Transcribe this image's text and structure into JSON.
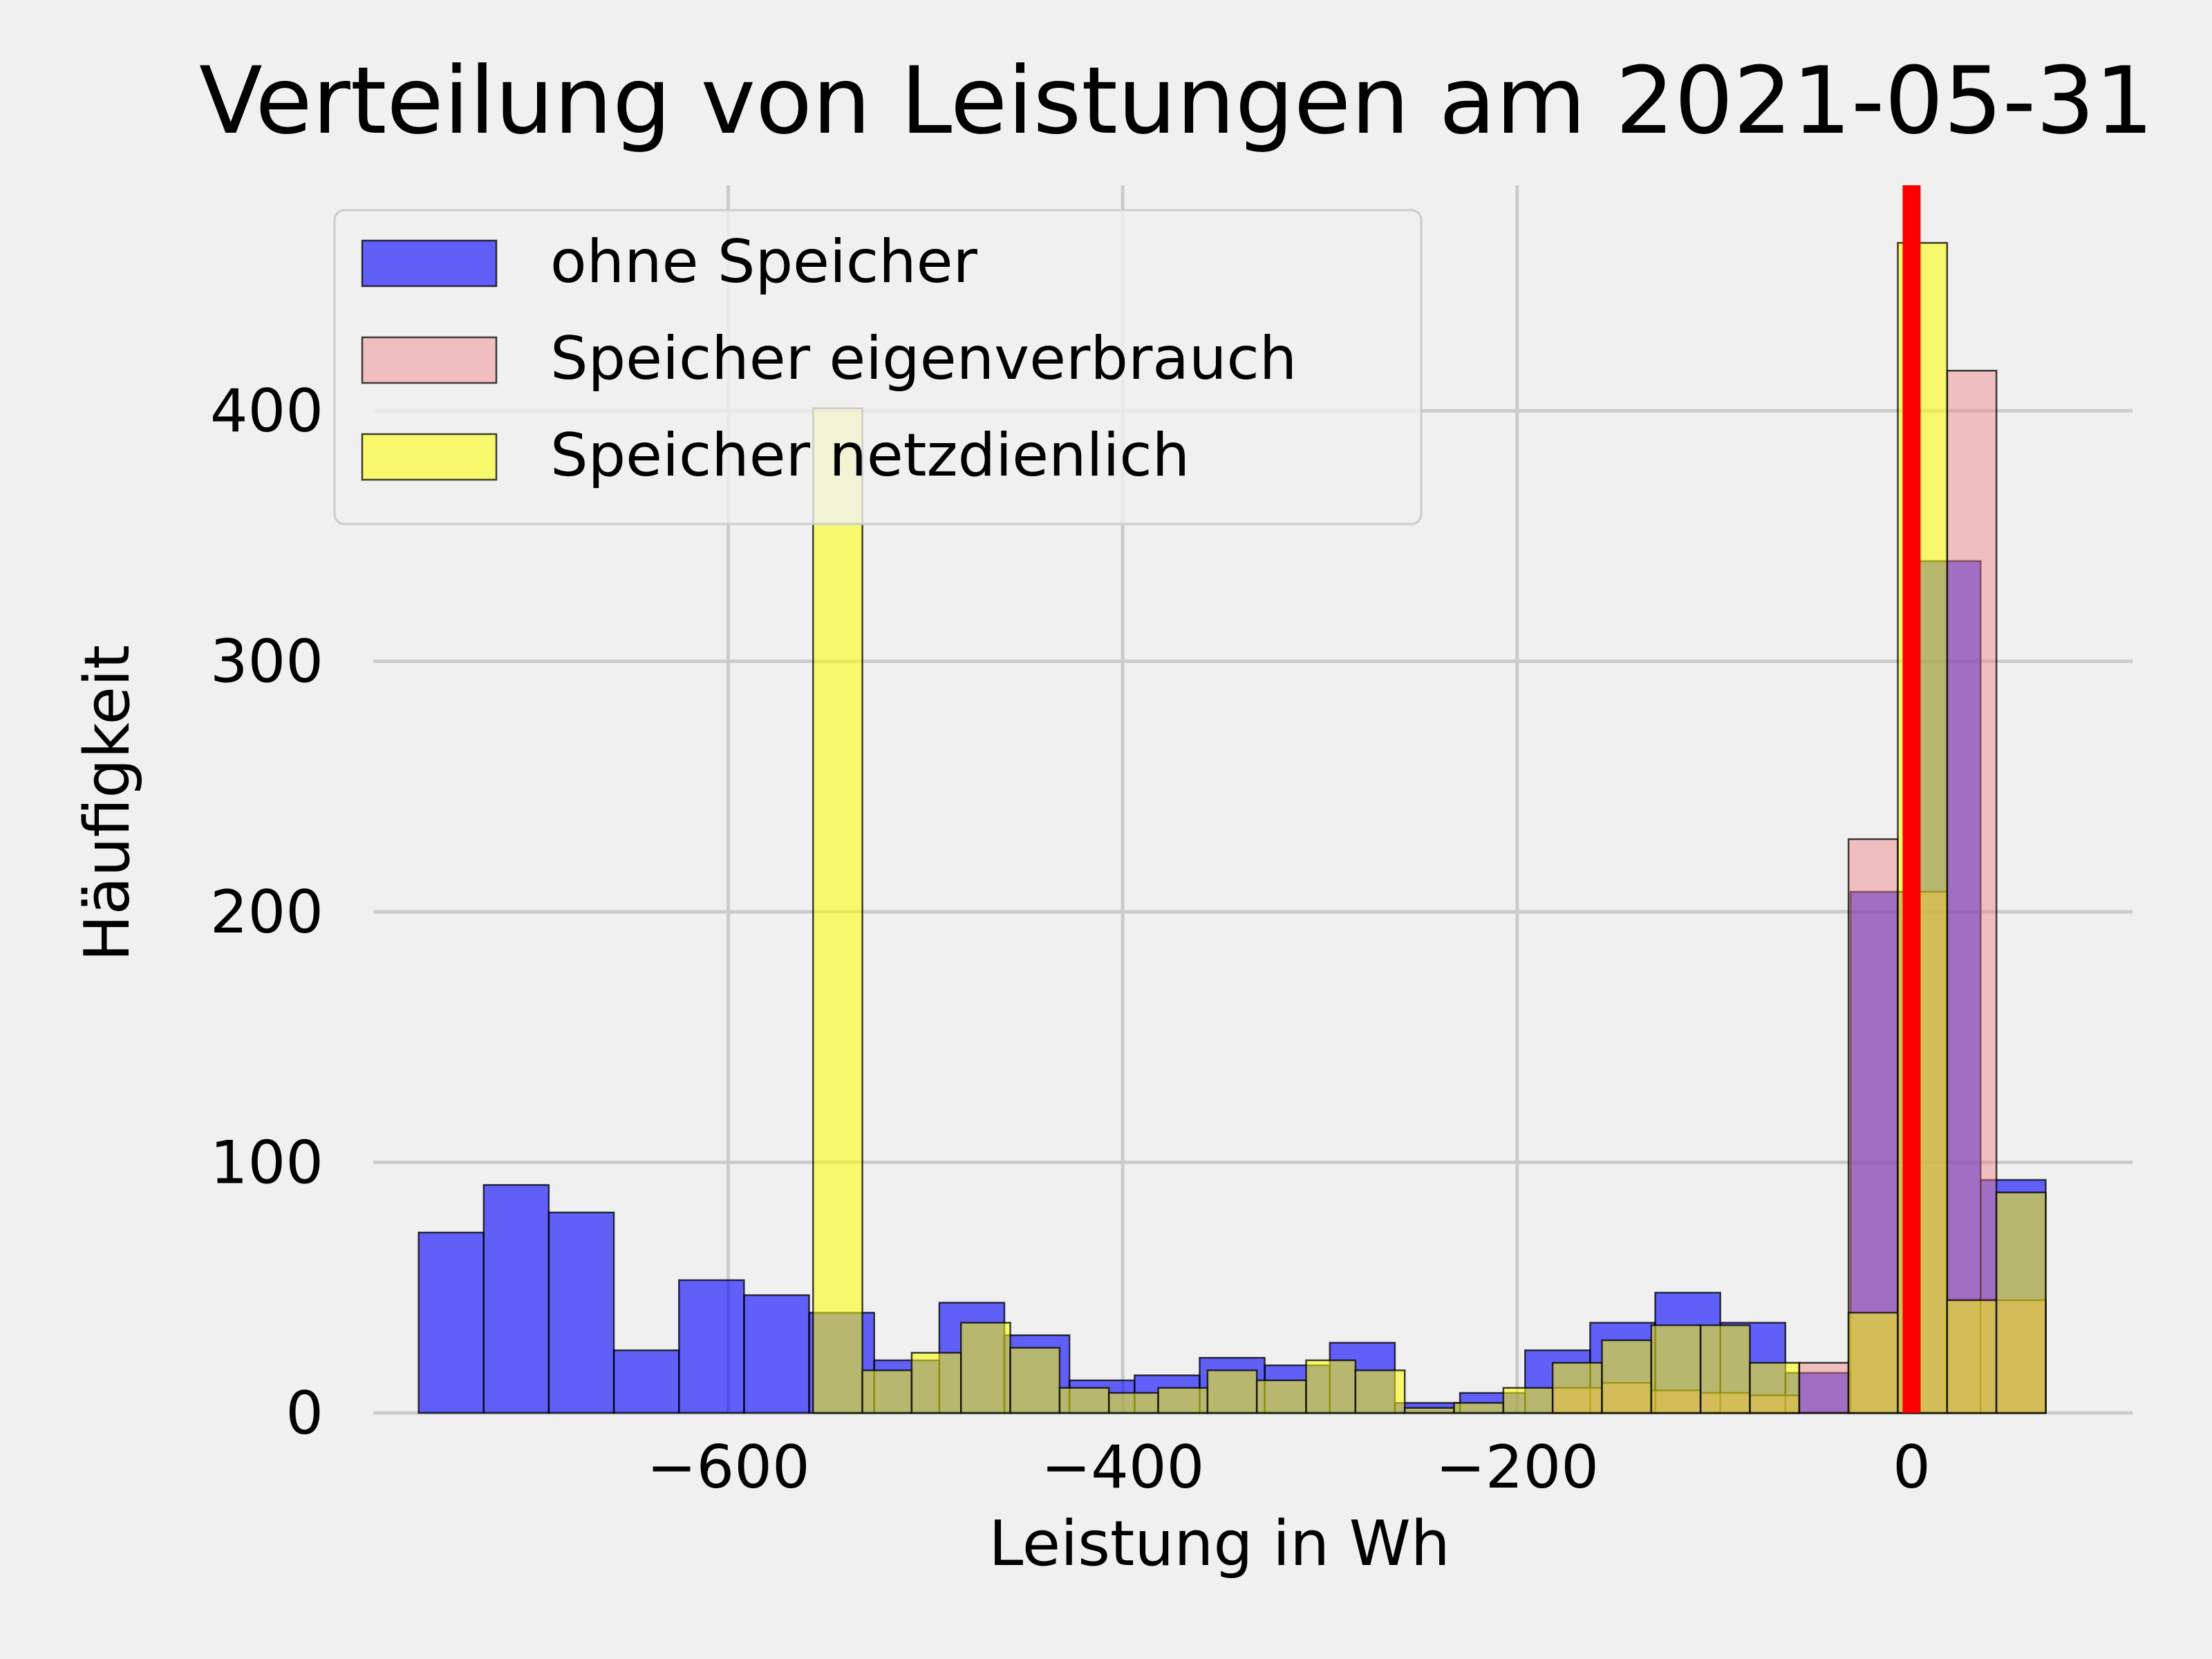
{
  "chart_data": {
    "type": "bar",
    "title": "Verteilung von Leistungen am 2021-05-31",
    "xlabel": "Leistung in Wh",
    "ylabel": "Häufigkeit",
    "xlim": [
      -780,
      112
    ],
    "ylim": [
      0,
      490
    ],
    "xticks": [
      -600,
      -400,
      -200,
      0
    ],
    "xtick_labels": [
      "−600",
      "−400",
      "−200",
      "0"
    ],
    "yticks": [
      0,
      100,
      200,
      300,
      400
    ],
    "ytick_labels": [
      "0",
      "100",
      "200",
      "300",
      "400"
    ],
    "grid": true,
    "legend_position": "top-left",
    "vline": {
      "x": 0,
      "color": "#ff0000"
    },
    "series": [
      {
        "name": "ohne Speicher",
        "color": "#0000ff",
        "opacity": 0.6,
        "bins": [
          [
            -757,
            -724,
            72
          ],
          [
            -724,
            -691,
            91
          ],
          [
            -691,
            -658,
            80
          ],
          [
            -658,
            -625,
            25
          ],
          [
            -625,
            -592,
            53
          ],
          [
            -592,
            -559,
            47
          ],
          [
            -559,
            -526,
            40
          ],
          [
            -526,
            -493,
            21
          ],
          [
            -493,
            -460,
            44
          ],
          [
            -460,
            -427,
            31
          ],
          [
            -427,
            -394,
            13
          ],
          [
            -394,
            -361,
            15
          ],
          [
            -361,
            -328,
            22
          ],
          [
            -328,
            -295,
            19
          ],
          [
            -295,
            -262,
            28
          ],
          [
            -262,
            -229,
            4
          ],
          [
            -229,
            -196,
            8
          ],
          [
            -196,
            -163,
            25
          ],
          [
            -163,
            -130,
            36
          ],
          [
            -130,
            -97,
            48
          ],
          [
            -97,
            -64,
            36
          ],
          [
            -64,
            -31,
            16
          ],
          [
            -31,
            2,
            208
          ],
          [
            2,
            35,
            340
          ],
          [
            35,
            68,
            93
          ]
        ]
      },
      {
        "name": "Speicher eigenverbrauch",
        "color": "#f08080",
        "opacity": 0.45,
        "bins": [
          [
            -557,
            -532,
            0
          ],
          [
            -532,
            -507,
            0
          ],
          [
            -507,
            -482,
            0
          ],
          [
            -482,
            -457,
            0
          ],
          [
            -457,
            -432,
            0
          ],
          [
            -432,
            -407,
            0
          ],
          [
            -407,
            -382,
            0
          ],
          [
            -382,
            -357,
            0
          ],
          [
            -357,
            -332,
            0
          ],
          [
            -332,
            -307,
            0
          ],
          [
            -307,
            -282,
            0
          ],
          [
            -282,
            -257,
            0
          ],
          [
            -257,
            -232,
            0
          ],
          [
            -232,
            -207,
            0
          ],
          [
            -207,
            -182,
            0
          ],
          [
            -182,
            -157,
            10
          ],
          [
            -157,
            -132,
            12
          ],
          [
            -132,
            -107,
            9
          ],
          [
            -107,
            -82,
            8
          ],
          [
            -82,
            -57,
            7
          ],
          [
            -57,
            -32,
            20
          ],
          [
            -32,
            -7,
            229
          ],
          [
            -7,
            18,
            208
          ],
          [
            18,
            43,
            416
          ],
          [
            43,
            68,
            45
          ]
        ]
      },
      {
        "name": "Speicher netzdienlich",
        "color": "#ffff00",
        "opacity": 0.55,
        "bins": [
          [
            -557,
            -532,
            401
          ],
          [
            -532,
            -507,
            17
          ],
          [
            -507,
            -482,
            24
          ],
          [
            -482,
            -457,
            36
          ],
          [
            -457,
            -432,
            26
          ],
          [
            -432,
            -407,
            10
          ],
          [
            -407,
            -382,
            8
          ],
          [
            -382,
            -357,
            10
          ],
          [
            -357,
            -332,
            17
          ],
          [
            -332,
            -307,
            13
          ],
          [
            -307,
            -282,
            21
          ],
          [
            -282,
            -257,
            17
          ],
          [
            -257,
            -232,
            2
          ],
          [
            -232,
            -207,
            4
          ],
          [
            -207,
            -182,
            10
          ],
          [
            -182,
            -157,
            20
          ],
          [
            -157,
            -132,
            29
          ],
          [
            -132,
            -107,
            35
          ],
          [
            -107,
            -82,
            35
          ],
          [
            -82,
            -57,
            20
          ],
          [
            -57,
            -32,
            0
          ],
          [
            -32,
            -7,
            40
          ],
          [
            -7,
            18,
            467
          ],
          [
            18,
            43,
            45
          ],
          [
            43,
            68,
            88
          ]
        ]
      }
    ]
  }
}
